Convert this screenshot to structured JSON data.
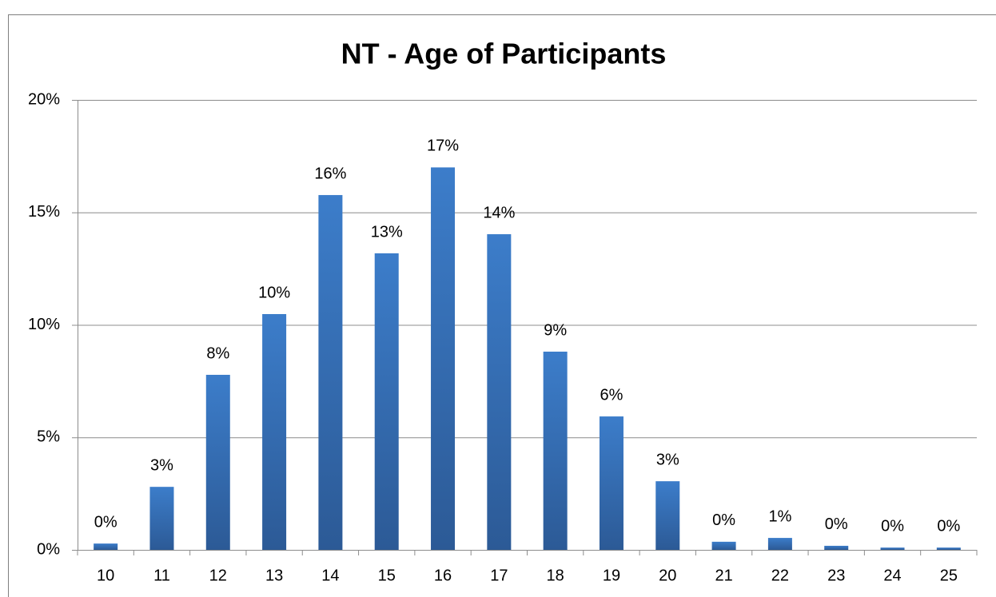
{
  "chart_data": {
    "type": "bar",
    "title": "NT - Age of Participants",
    "categories": [
      "10",
      "11",
      "12",
      "13",
      "14",
      "15",
      "16",
      "17",
      "18",
      "19",
      "20",
      "21",
      "22",
      "23",
      "24",
      "25"
    ],
    "values": [
      0.28,
      2.8,
      7.78,
      10.48,
      15.77,
      13.18,
      17.0,
      14.03,
      8.81,
      5.93,
      3.05,
      0.36,
      0.53,
      0.18,
      0.1,
      0.1
    ],
    "value_labels": [
      "0%",
      "3%",
      "8%",
      "10%",
      "16%",
      "13%",
      "17%",
      "14%",
      "9%",
      "6%",
      "3%",
      "0%",
      "1%",
      "0%",
      "0%",
      "0%"
    ],
    "color": "#3c7dca",
    "ylim": [
      0,
      20
    ],
    "yticks": [
      {
        "value": 0,
        "label": "0%"
      },
      {
        "value": 5,
        "label": "5%"
      },
      {
        "value": 10,
        "label": "10%"
      },
      {
        "value": 15,
        "label": "15%"
      },
      {
        "value": 20,
        "label": "20%"
      }
    ],
    "grid": true
  }
}
